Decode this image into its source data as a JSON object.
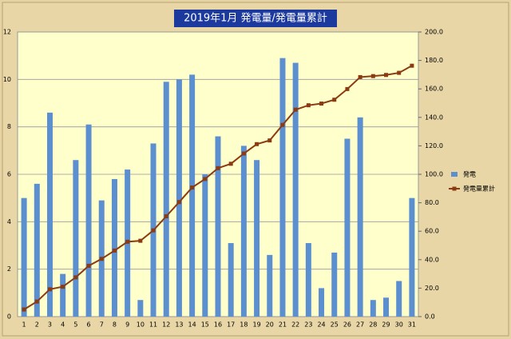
{
  "chart_data": {
    "type": "bar",
    "title": "2019年1月 発電量/発電量累計",
    "categories": [
      "1",
      "2",
      "3",
      "4",
      "5",
      "6",
      "7",
      "8",
      "9",
      "10",
      "11",
      "12",
      "13",
      "14",
      "15",
      "16",
      "17",
      "18",
      "19",
      "20",
      "21",
      "22",
      "23",
      "24",
      "25",
      "26",
      "27",
      "28",
      "29",
      "30",
      "31"
    ],
    "series": [
      {
        "name": "発電",
        "type": "bar",
        "color": "#5b8fcf",
        "values": [
          5.0,
          5.6,
          8.6,
          1.8,
          6.6,
          8.1,
          4.9,
          5.8,
          6.2,
          0.7,
          7.3,
          9.9,
          10.0,
          10.2,
          6.0,
          7.6,
          3.1,
          7.2,
          6.6,
          2.6,
          10.9,
          10.7,
          3.1,
          1.2,
          2.7,
          7.5,
          8.4,
          0.7,
          0.8,
          1.5,
          5.0
        ]
      },
      {
        "name": "発電量累計",
        "type": "line",
        "axis": "y2",
        "color": "#8b3a12",
        "values": [
          5.0,
          10.6,
          19.2,
          21.0,
          27.6,
          35.7,
          40.6,
          46.4,
          52.6,
          53.3,
          60.6,
          70.5,
          80.5,
          90.7,
          96.7,
          104.3,
          107.4,
          114.6,
          121.2,
          123.8,
          134.7,
          145.4,
          148.5,
          149.7,
          152.4,
          159.9,
          168.3,
          169.0,
          169.8,
          171.3,
          176.3
        ]
      }
    ],
    "ylim": [
      0,
      12
    ],
    "yticks": [
      0,
      2,
      4,
      6,
      8,
      10,
      12
    ],
    "y2lim": [
      0,
      200
    ],
    "y2ticks": [
      {
        "value": 0,
        "label": "0.0"
      },
      {
        "value": 20,
        "label": "20.0"
      },
      {
        "value": 40,
        "label": "40.0"
      },
      {
        "value": 60,
        "label": "60.0"
      },
      {
        "value": 80,
        "label": "80.0"
      },
      {
        "value": 100,
        "label": "100.0"
      },
      {
        "value": 120,
        "label": "120.0"
      },
      {
        "value": 140,
        "label": "140.0"
      },
      {
        "value": 160,
        "label": "160.0"
      },
      {
        "value": 180,
        "label": "180.0"
      },
      {
        "value": 200,
        "label": "200.0"
      }
    ],
    "grid": true,
    "legend": "right"
  }
}
